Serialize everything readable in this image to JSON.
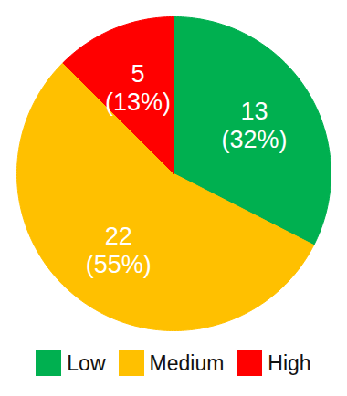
{
  "chart_data": {
    "type": "pie",
    "categories": [
      "Low",
      "Medium",
      "High"
    ],
    "values": [
      13,
      22,
      5
    ],
    "percent_labels": [
      "(32%)",
      "(55%)",
      "(13%)"
    ],
    "colors": [
      "#00b050",
      "#ffc000",
      "#ff0000"
    ],
    "data_labels": true,
    "legend": "bottom"
  }
}
